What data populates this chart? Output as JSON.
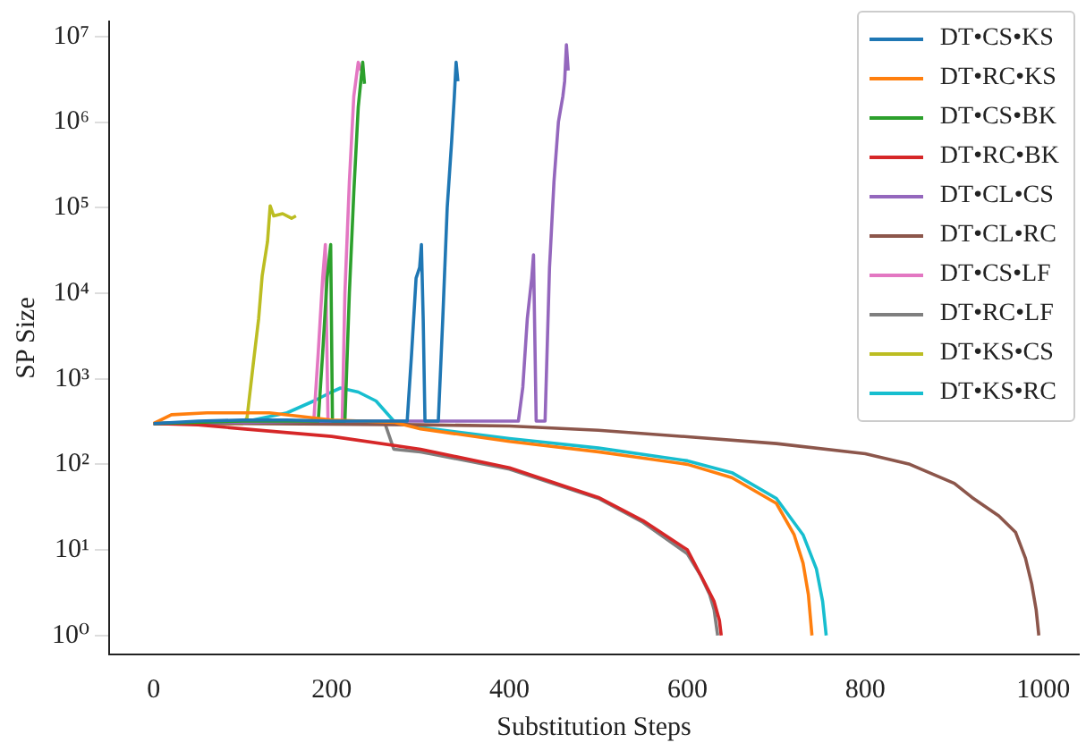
{
  "chart_data": {
    "type": "line",
    "xlabel": "Substitution Steps",
    "ylabel": "SP Size",
    "log": "y",
    "legend": "top right",
    "marker": "none",
    "line_style": "solid",
    "grid": false,
    "xlim": [
      -50,
      1040
    ],
    "xticks": [
      0,
      200,
      400,
      600,
      800,
      1000
    ],
    "ylim": [
      0.6,
      15000000
    ],
    "yticks": [
      {
        "value": 1,
        "label": "10⁰"
      },
      {
        "value": 10,
        "label": "10¹"
      },
      {
        "value": 100,
        "label": "10²"
      },
      {
        "value": 1000,
        "label": "10³"
      },
      {
        "value": 10000,
        "label": "10⁴"
      },
      {
        "value": 100000,
        "label": "10⁵"
      },
      {
        "value": 1000000,
        "label": "10⁶"
      },
      {
        "value": 10000000,
        "label": "10⁷"
      }
    ],
    "series": [
      {
        "name": "DT•CS•KS",
        "color": "#1f77b4",
        "x": [
          0,
          50,
          100,
          150,
          200,
          250,
          285,
          290,
          295,
          299,
          301,
          303,
          305,
          320,
          325,
          330,
          335,
          338,
          340,
          342
        ],
        "values": [
          300,
          320,
          330,
          330,
          320,
          320,
          320,
          2000,
          15000,
          20000,
          37000,
          5000,
          320,
          320,
          5000,
          100000,
          600000,
          2000000,
          5000000,
          3000000
        ]
      },
      {
        "name": "DT•RC•KS",
        "color": "#ff7f0e",
        "x": [
          0,
          20,
          60,
          130,
          200,
          270,
          300,
          400,
          500,
          600,
          650,
          700,
          720,
          730,
          736,
          740
        ],
        "values": [
          300,
          380,
          400,
          400,
          330,
          310,
          260,
          185,
          140,
          100,
          70,
          35,
          15,
          7,
          3,
          1
        ]
      },
      {
        "name": "DT•CS•BK",
        "color": "#2ca02c",
        "x": [
          0,
          100,
          185,
          190,
          195,
          199,
          201,
          215,
          220,
          225,
          230,
          235,
          237
        ],
        "values": [
          300,
          320,
          320,
          2000,
          15000,
          37000,
          320,
          320,
          10000,
          150000,
          1500000,
          5000000,
          2800000
        ]
      },
      {
        "name": "DT•RC•BK",
        "color": "#d62728",
        "x": [
          0,
          50,
          100,
          200,
          300,
          400,
          500,
          550,
          600,
          620,
          630,
          636,
          638
        ],
        "values": [
          300,
          290,
          260,
          212,
          150,
          91,
          41,
          22,
          10,
          4,
          2.5,
          1.5,
          1
        ]
      },
      {
        "name": "DT•CL•CS",
        "color": "#9467bd",
        "x": [
          0,
          100,
          200,
          300,
          410,
          415,
          420,
          425,
          427,
          430,
          440,
          445,
          450,
          455,
          460,
          462,
          464,
          466
        ],
        "values": [
          300,
          310,
          320,
          320,
          320,
          800,
          5000,
          15000,
          28000,
          320,
          320,
          20000,
          200000,
          1000000,
          2000000,
          3000000,
          8000000,
          4000000
        ]
      },
      {
        "name": "DT•CL•RC",
        "color": "#8c564b",
        "x": [
          0,
          100,
          200,
          300,
          400,
          500,
          600,
          700,
          800,
          850,
          900,
          920,
          950,
          969,
          980,
          987,
          992,
          995
        ],
        "values": [
          300,
          300,
          295,
          290,
          280,
          250,
          210,
          175,
          133,
          100,
          60,
          41,
          25,
          16,
          8,
          4,
          2,
          1
        ]
      },
      {
        "name": "DT•CS•LF",
        "color": "#e377c2",
        "x": [
          0,
          100,
          180,
          185,
          190,
          193,
          196,
          212,
          215,
          220,
          225,
          230,
          233
        ],
        "values": [
          300,
          320,
          320,
          2000,
          15000,
          37000,
          320,
          320,
          10000,
          200000,
          2000000,
          5000000,
          4000000
        ]
      },
      {
        "name": "DT•RC•LF",
        "color": "#7f7f7f",
        "x": [
          0,
          100,
          200,
          260,
          270,
          300,
          400,
          500,
          550,
          600,
          615,
          625,
          630,
          634
        ],
        "values": [
          300,
          320,
          310,
          300,
          150,
          140,
          88,
          40,
          21,
          9,
          5,
          3,
          2,
          1
        ]
      },
      {
        "name": "DT•KS•CS",
        "color": "#bcbd22",
        "x": [
          0,
          100,
          105,
          112,
          118,
          122,
          128,
          131,
          135,
          145,
          155,
          160
        ],
        "values": [
          300,
          300,
          350,
          1500,
          5000,
          16000,
          40000,
          105000,
          80000,
          85000,
          75000,
          80000
        ]
      },
      {
        "name": "DT•KS•RC",
        "color": "#17becf",
        "x": [
          0,
          100,
          150,
          180,
          200,
          210,
          230,
          250,
          270,
          300,
          400,
          500,
          600,
          650,
          700,
          730,
          745,
          752,
          756
        ],
        "values": [
          300,
          310,
          400,
          550,
          700,
          780,
          700,
          550,
          320,
          270,
          200,
          155,
          110,
          80,
          40,
          15,
          6,
          2.5,
          1
        ]
      }
    ]
  }
}
